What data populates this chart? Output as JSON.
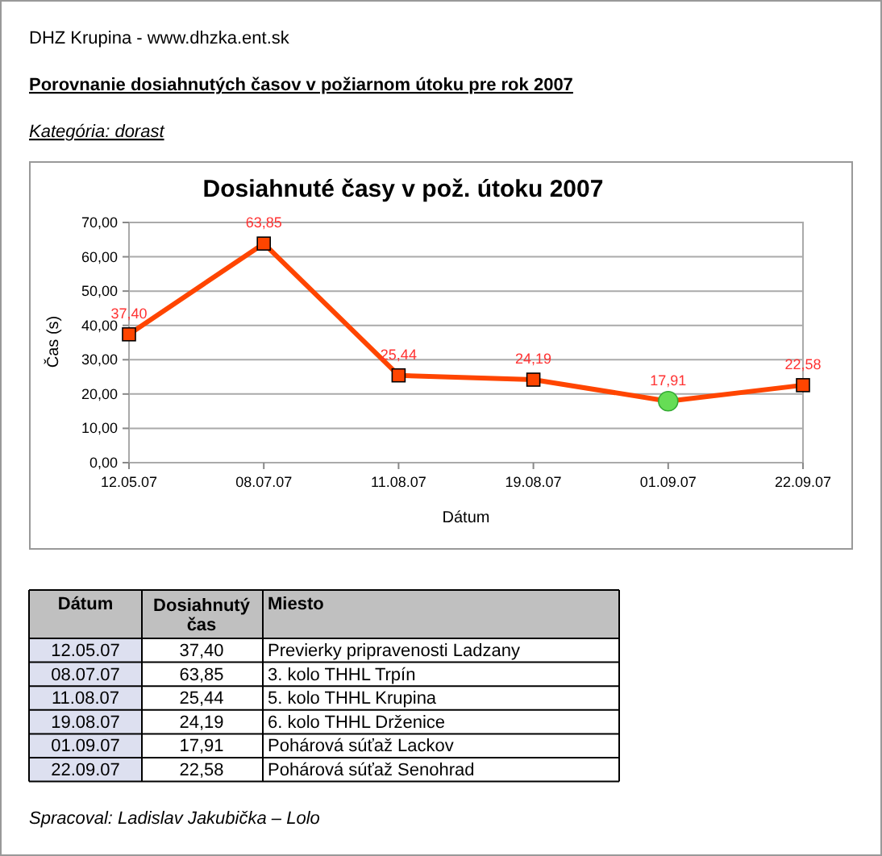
{
  "chart_data": {
    "type": "line",
    "title": "Dosiahnuté časy v pož. útoku 2007",
    "subtitle": "Porovnanie dosiahnutých časov v požiarnom útoku pre rok 2007",
    "xlabel": "Dátum",
    "ylabel": "Čas (s)",
    "annotations": [
      "DHZ Krupina - www.dhzka.ent.sk",
      "Kategória: dorast",
      "Spracoval: Ladislav Jakubička – Lolo",
      "Dátum",
      "Dosiahnutý čas",
      "Miesto",
      "Previerky pripravenosti Ladzany",
      "3. kolo THHL Trpín",
      "5. kolo THHL Krupina",
      "6. kolo THHL Drženice",
      "Pohárová súťaž Lackov",
      "Pohárová súťaž Senohrad"
    ],
    "categories": [
      "12.05.07",
      "08.07.07",
      "11.08.07",
      "19.08.07",
      "01.09.07",
      "22.09.07"
    ],
    "series": [
      {
        "color": "#ff4500",
        "marker": "square",
        "values": [
          37.4,
          63.85,
          25.44,
          24.19,
          17.91,
          22.58
        ],
        "value_labels": [
          "37,40",
          "63,85",
          "25,44",
          "24,19",
          "17,91",
          "22,58"
        ]
      },
      {
        "type": "scatter",
        "color": "#66dd55",
        "marker": "circle",
        "values": [
          null,
          null,
          null,
          null,
          17.91,
          null
        ]
      }
    ],
    "ylim": [
      0,
      70
    ],
    "yticks": [
      {
        "value": 0,
        "label": "0,00"
      },
      {
        "value": 10,
        "label": "10,00"
      },
      {
        "value": 20,
        "label": "20,00"
      },
      {
        "value": 30,
        "label": "30,00"
      },
      {
        "value": 40,
        "label": "40,00"
      },
      {
        "value": 50,
        "label": "50,00"
      },
      {
        "value": 60,
        "label": "60,00"
      },
      {
        "value": 70,
        "label": "70,00"
      }
    ],
    "grid": "y",
    "line_style": "solid"
  }
}
